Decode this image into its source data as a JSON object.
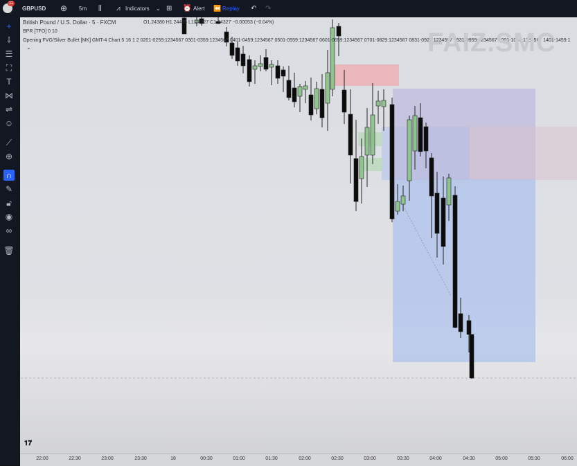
{
  "topbar": {
    "badge": "11",
    "symbol": "GBPUSD",
    "interval": "5m",
    "indicators": "Indicators",
    "alert": "Alert",
    "replay": "Replay"
  },
  "legend": {
    "title": "British Pound / U.S. Dollar · 5 · FXCM",
    "ohlc": "O1.24380 H1.24435 L1.24327 C1.24327 −0.00053 (−0.04%)",
    "bpr": "BPR [TFO] 0 10",
    "indicator": "Opening FVG/Silver Bullet [MK] GMT-4 Chart 5 16 1 2 0201-0259:1234567 0301-0359:1234567 0401-0459:1234567 0501-0559:1234567 0601-0659:1234567 0701-0829:1234567 0831-0929:1234567 0931-0959:1234567 1001-1059:1234567 1401-1459:1"
  },
  "watermark": "FAIZ.SMC",
  "time_axis": [
    "22:00",
    "22:30",
    "23:00",
    "23:30",
    "18",
    "00:30",
    "01:00",
    "01:30",
    "02:00",
    "02:30",
    "03:00",
    "03:30",
    "04:00",
    "04:30",
    "05:00",
    "05:30",
    "06:00"
  ],
  "icons": [
    "plus-icon",
    "sparkle-icon",
    "trendline-icon",
    "fib-icon",
    "text-icon",
    "pattern-icon",
    "forecast-icon",
    "emoji-icon",
    "ruler-icon",
    "zoom-icon",
    "magnet-icon",
    "lock-drawing-icon",
    "lock-icon",
    "eye-icon",
    "link-icon",
    "trash-icon"
  ],
  "colors": {
    "up": "#8fc48f",
    "down": "#0c0c0c",
    "accent": "#2962ff"
  }
}
